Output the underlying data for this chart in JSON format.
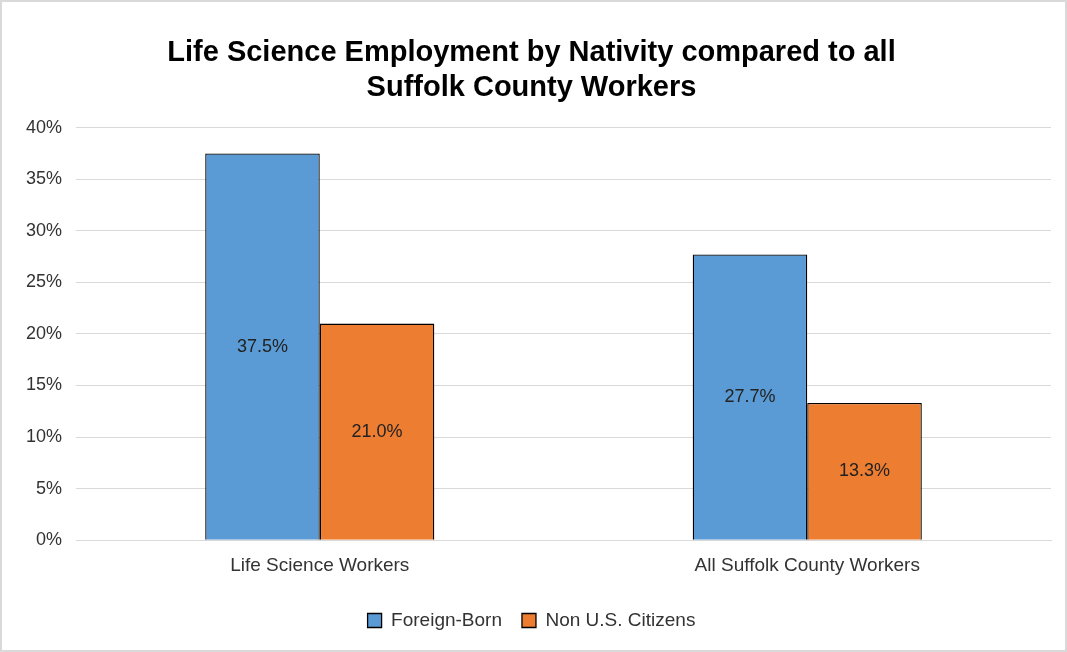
{
  "chart_data": {
    "type": "bar",
    "title": "Life Science Employment by Nativity compared to all Suffolk County Workers",
    "categories": [
      "Life Science Workers",
      "All Suffolk County Workers"
    ],
    "series": [
      {
        "name": "Foreign-Born",
        "color": "#5b9bd5",
        "values": [
          37.5,
          27.7
        ],
        "value_labels": [
          "37.5%",
          "27.7%"
        ]
      },
      {
        "name": "Non U.S. Citizens",
        "color": "#ed7d31",
        "values": [
          21.0,
          13.3
        ],
        "value_labels": [
          "21.0%",
          "13.3%"
        ]
      }
    ],
    "ylim": [
      0,
      40
    ],
    "yticks": [
      {
        "value": 0,
        "label": "0%"
      },
      {
        "value": 5,
        "label": "5%"
      },
      {
        "value": 10,
        "label": "10%"
      },
      {
        "value": 15,
        "label": "15%"
      },
      {
        "value": 20,
        "label": "20%"
      },
      {
        "value": 25,
        "label": "25%"
      },
      {
        "value": 30,
        "label": "30%"
      },
      {
        "value": 35,
        "label": "35%"
      },
      {
        "value": 40,
        "label": "40%"
      }
    ],
    "grid": "y",
    "legend": "bottom"
  }
}
